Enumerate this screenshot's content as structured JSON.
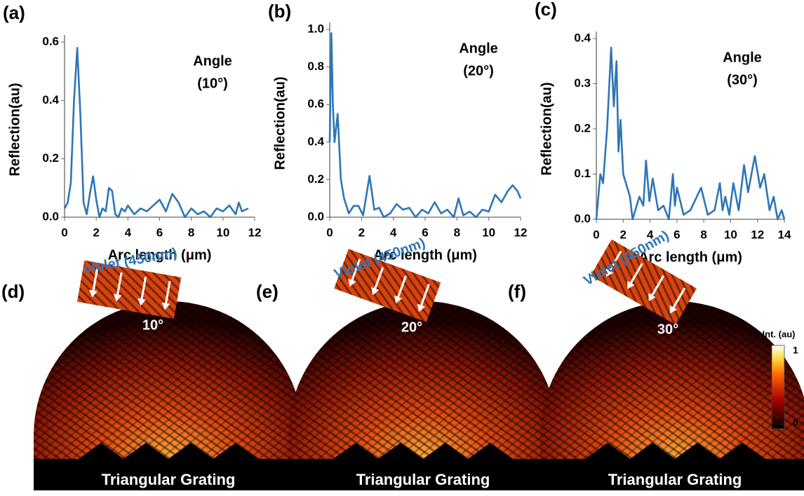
{
  "chart_data": [
    {
      "type": "line",
      "title": "(a)",
      "xlabel": "Arc length (μm)",
      "ylabel": "Reflection(au)",
      "annotation": [
        "Angle",
        "(10°)"
      ],
      "xlim": [
        0,
        12
      ],
      "xticks": [
        0,
        2,
        4,
        6,
        8,
        10,
        12
      ],
      "ylim": [
        0,
        0.6
      ],
      "yticks": [
        {
          "value": 0,
          "label": "0.0"
        },
        0.2,
        0.4,
        0.6
      ],
      "series": [
        {
          "color": "#2e75b6",
          "x": [
            0,
            0.2,
            0.4,
            0.6,
            0.8,
            1.0,
            1.2,
            1.4,
            1.6,
            1.8,
            2.0,
            2.2,
            2.4,
            2.6,
            2.8,
            3.0,
            3.2,
            3.4,
            3.6,
            3.8,
            4.0,
            4.4,
            4.8,
            5.2,
            5.6,
            6.0,
            6.4,
            6.8,
            7.2,
            7.6,
            8.0,
            8.4,
            8.8,
            9.2,
            9.6,
            10.0,
            10.4,
            10.8,
            11.0,
            11.2,
            11.6
          ],
          "values": [
            0.03,
            0.05,
            0.12,
            0.4,
            0.58,
            0.35,
            0.05,
            0.01,
            0.08,
            0.14,
            0.06,
            0.0,
            0.03,
            0.02,
            0.1,
            0.09,
            0.01,
            0.0,
            0.03,
            0.02,
            0.04,
            0.01,
            0.03,
            0.02,
            0.04,
            0.06,
            0.02,
            0.08,
            0.05,
            0.0,
            0.03,
            0.01,
            0.02,
            0.0,
            0.03,
            0.02,
            0.04,
            0.01,
            0.05,
            0.02,
            0.03
          ]
        }
      ]
    },
    {
      "type": "line",
      "title": "(b)",
      "xlabel": "Arc length (μm)",
      "ylabel": "Reflection(au)",
      "annotation": [
        "Angle",
        "(20°)"
      ],
      "xlim": [
        0,
        12
      ],
      "xticks": [
        0,
        2,
        4,
        6,
        8,
        10,
        12
      ],
      "ylim": [
        0,
        1
      ],
      "yticks": [
        {
          "value": 0,
          "label": "0.0"
        },
        0.2,
        0.4,
        0.6,
        0.8,
        {
          "value": 1,
          "label": "1.0"
        }
      ],
      "series": [
        {
          "color": "#2e75b6",
          "x": [
            0,
            0.1,
            0.2,
            0.3,
            0.5,
            0.7,
            0.9,
            1.2,
            1.5,
            1.8,
            2.1,
            2.5,
            2.8,
            3.1,
            3.4,
            3.8,
            4.2,
            4.6,
            5.0,
            5.4,
            5.8,
            6.2,
            6.6,
            7.0,
            7.4,
            7.8,
            8.1,
            8.4,
            8.8,
            9.2,
            9.6,
            10.0,
            10.4,
            10.8,
            11.2,
            11.5,
            11.8,
            12.0
          ],
          "values": [
            0.4,
            0.98,
            0.6,
            0.4,
            0.55,
            0.2,
            0.1,
            0.02,
            0.06,
            0.06,
            0.01,
            0.22,
            0.04,
            0.05,
            0.0,
            0.02,
            0.07,
            0.04,
            0.05,
            0.0,
            0.04,
            0.02,
            0.08,
            0.02,
            0.04,
            0.0,
            0.1,
            0.01,
            0.03,
            0.0,
            0.04,
            0.03,
            0.12,
            0.08,
            0.14,
            0.17,
            0.14,
            0.1
          ]
        }
      ]
    },
    {
      "type": "line",
      "title": "(c)",
      "xlabel": "Arc length (μm)",
      "ylabel": "Reflection(au)",
      "annotation": [
        "Angle",
        "(30°)"
      ],
      "xlim": [
        0,
        14
      ],
      "xticks": [
        0,
        2,
        4,
        6,
        8,
        10,
        12,
        14
      ],
      "ylim": [
        0,
        0.4
      ],
      "yticks": [
        {
          "value": 0,
          "label": "0.0"
        },
        0.1,
        0.2,
        0.3,
        0.4
      ],
      "series": [
        {
          "color": "#2e75b6",
          "x": [
            0,
            0.3,
            0.5,
            0.8,
            1.1,
            1.3,
            1.5,
            1.65,
            1.8,
            2.0,
            2.5,
            2.7,
            3.2,
            3.5,
            3.7,
            3.95,
            4.2,
            4.6,
            5.0,
            5.4,
            5.7,
            5.85,
            6.0,
            6.5,
            7.0,
            7.8,
            8.3,
            8.8,
            9.2,
            9.4,
            9.6,
            9.9,
            10.2,
            10.6,
            11.0,
            11.3,
            11.8,
            12.2,
            12.5,
            12.9,
            13.2,
            13.5,
            13.8,
            14.0
          ],
          "values": [
            0.0,
            0.1,
            0.08,
            0.2,
            0.38,
            0.25,
            0.35,
            0.15,
            0.22,
            0.1,
            0.05,
            0.0,
            0.05,
            0.03,
            0.13,
            0.04,
            0.09,
            0.02,
            0.03,
            0.0,
            0.1,
            0.03,
            0.07,
            0.01,
            0.02,
            0.07,
            0.01,
            0.02,
            0.08,
            0.02,
            0.05,
            0.01,
            0.08,
            0.02,
            0.12,
            0.06,
            0.14,
            0.07,
            0.1,
            0.02,
            0.05,
            0.0,
            0.02,
            0.0
          ]
        }
      ]
    }
  ],
  "simulations": [
    {
      "label": "(d)",
      "source": "violet (450nm)",
      "angle": "10°",
      "grating": "Triangular Grating"
    },
    {
      "label": "(e)",
      "source": "Violet (450nm)",
      "angle": "20°",
      "grating": "Triangular Grating"
    },
    {
      "label": "(f)",
      "source": "Violet (450nm)",
      "angle": "30°",
      "grating": "Triangular Grating"
    }
  ],
  "colorbar": {
    "title": "Int. (au)",
    "ticks": [
      0,
      1
    ]
  }
}
